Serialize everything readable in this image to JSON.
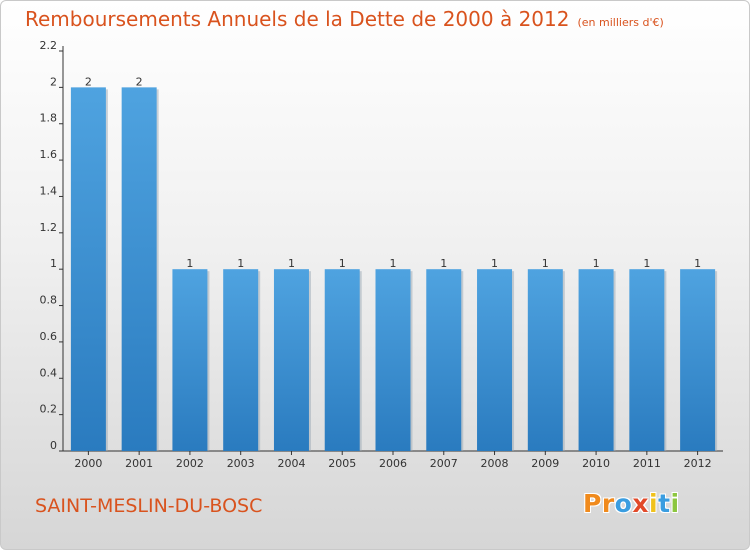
{
  "chart_data": {
    "type": "bar",
    "title": "Remboursements Annuels de la Dette de 2000 à 2012",
    "subtitle": "(en milliers d'€)",
    "categories": [
      "2000",
      "2001",
      "2002",
      "2003",
      "2004",
      "2005",
      "2006",
      "2007",
      "2008",
      "2009",
      "2010",
      "2011",
      "2012"
    ],
    "values": [
      2,
      2,
      1,
      1,
      1,
      1,
      1,
      1,
      1,
      1,
      1,
      1,
      1
    ],
    "data_labels": [
      "2",
      "2",
      "1",
      "1",
      "1",
      "1",
      "1",
      "1",
      "1",
      "1",
      "1",
      "1",
      "1"
    ],
    "ylim": [
      0,
      2.2
    ],
    "yticks": [
      0,
      0.2,
      0.4,
      0.6,
      0.8,
      1,
      1.2,
      1.4,
      1.6,
      1.8,
      2,
      2.2
    ],
    "ytick_labels": [
      "0",
      "0.2",
      "0.4",
      "0.6",
      "0.8",
      "1",
      "1.2",
      "1.4",
      "1.6",
      "1.8",
      "2",
      "2.2"
    ],
    "grid": false,
    "bar_color": "#4fa3e0",
    "bar_color_dark": "#2a7bbf"
  },
  "footer": {
    "commune": "SAINT-MESLIN-DU-BOSC",
    "logo_letters": [
      "P",
      "r",
      "o",
      "x",
      "i",
      "t",
      "i"
    ],
    "logo_colors": [
      "#f08a1c",
      "#f08a1c",
      "#3a9de0",
      "#e24a2a",
      "#f0c21c",
      "#3a9de0",
      "#8cc63f"
    ]
  },
  "colors": {
    "title": "#d9531e",
    "axis": "#333333"
  }
}
